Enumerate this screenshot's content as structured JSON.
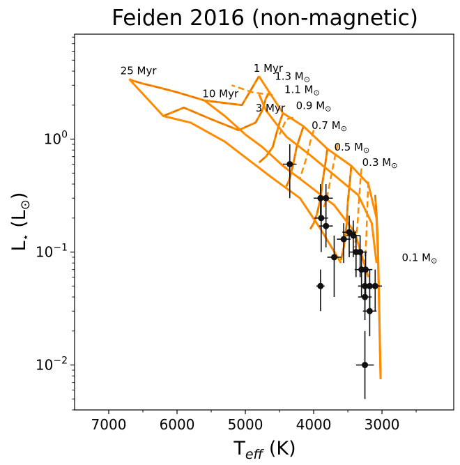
{
  "chart_data": {
    "type": "scatter",
    "title": "Feiden 2016 (non-magnetic)",
    "xlabel": {
      "main": "T",
      "sub": "eff",
      "unit": " (K)"
    },
    "ylabel": {
      "main": "L",
      "sub": "⋆",
      "unit_open": " (L",
      "unit_sub": "⊙",
      "unit_close": ")"
    },
    "x_axis": {
      "range": [
        1950,
        7500
      ],
      "inverted": true,
      "scale": "linear",
      "ticks": [
        7000,
        6000,
        5000,
        4000,
        3000
      ],
      "tick_labels": [
        "7000",
        "6000",
        "5000",
        "4000",
        "3000"
      ]
    },
    "y_axis": {
      "range": [
        0.004,
        8.5
      ],
      "scale": "log",
      "ticks": [
        0.01,
        0.1,
        1
      ],
      "tick_labels": [
        {
          "base": "10",
          "exp": "−2"
        },
        {
          "base": "10",
          "exp": "−1"
        },
        {
          "base": "10",
          "exp": "0"
        }
      ]
    },
    "colors": {
      "model": "#ff8c00",
      "data": "#111111",
      "axis": "#000000"
    },
    "mass_tracks": [
      {
        "mass": "1.3",
        "points": [
          [
            4800,
            3.6
          ],
          [
            4850,
            3.2
          ],
          [
            5050,
            2.0
          ],
          [
            5600,
            2.2
          ],
          [
            6000,
            2.6
          ],
          [
            6300,
            2.9
          ],
          [
            6500,
            3.1
          ],
          [
            6650,
            3.3
          ],
          [
            6700,
            3.4
          ]
        ]
      },
      {
        "mass": "1.1",
        "points": [
          [
            4650,
            2.6
          ],
          [
            4700,
            2.3
          ],
          [
            4750,
            1.8
          ],
          [
            4850,
            1.4
          ],
          [
            5100,
            1.2
          ],
          [
            5500,
            1.5
          ],
          [
            5900,
            1.9
          ],
          [
            6150,
            1.65
          ],
          [
            6200,
            1.6
          ]
        ]
      },
      {
        "mass": "0.9",
        "points": [
          [
            4450,
            1.7
          ],
          [
            4500,
            1.4
          ],
          [
            4550,
            1.1
          ],
          [
            4600,
            0.85
          ],
          [
            4700,
            0.7
          ],
          [
            4800,
            0.62
          ]
        ]
      },
      {
        "mass": "0.7",
        "points": [
          [
            4150,
            1.3
          ],
          [
            4200,
            1.05
          ],
          [
            4250,
            0.85
          ],
          [
            4300,
            0.6
          ],
          [
            4350,
            0.45
          ],
          [
            4400,
            0.38
          ]
        ]
      },
      {
        "mass": "0.5",
        "points": [
          [
            3800,
            0.82
          ],
          [
            3830,
            0.6
          ],
          [
            3870,
            0.42
          ],
          [
            3900,
            0.3
          ],
          [
            3950,
            0.22
          ],
          [
            4000,
            0.18
          ],
          [
            4050,
            0.16
          ]
        ]
      },
      {
        "mass": "0.3",
        "points": [
          [
            3450,
            0.58
          ],
          [
            3470,
            0.42
          ],
          [
            3500,
            0.28
          ],
          [
            3520,
            0.17
          ],
          [
            3560,
            0.11
          ],
          [
            3600,
            0.085
          ]
        ]
      },
      {
        "mass": "0.1",
        "points": [
          [
            3100,
            0.32
          ],
          [
            3080,
            0.22
          ],
          [
            3060,
            0.12
          ],
          [
            3050,
            0.06
          ],
          [
            3040,
            0.03
          ],
          [
            3030,
            0.015
          ],
          [
            3020,
            0.0075
          ]
        ]
      }
    ],
    "inner_tracks": [
      [
        [
          4600,
          2.45
        ],
        [
          4900,
          2.6
        ],
        [
          5200,
          3.0
        ]
      ],
      [
        [
          4300,
          1.55
        ],
        [
          4400,
          1.5
        ],
        [
          4500,
          1.1
        ]
      ],
      [
        [
          4000,
          1.2
        ],
        [
          4050,
          0.95
        ],
        [
          4100,
          0.7
        ],
        [
          4200,
          0.45
        ]
      ],
      [
        [
          3650,
          0.9
        ],
        [
          3700,
          0.65
        ],
        [
          3750,
          0.45
        ],
        [
          3800,
          0.32
        ],
        [
          3850,
          0.25
        ]
      ],
      [
        [
          3300,
          0.55
        ],
        [
          3320,
          0.4
        ],
        [
          3340,
          0.27
        ],
        [
          3360,
          0.17
        ],
        [
          3400,
          0.11
        ]
      ],
      [
        [
          3200,
          0.42
        ],
        [
          3210,
          0.3
        ],
        [
          3220,
          0.2
        ],
        [
          3230,
          0.13
        ],
        [
          3250,
          0.08
        ]
      ]
    ],
    "isochrones": [
      {
        "age": "1 Myr",
        "points": [
          [
            3020,
            0.0075
          ],
          [
            3060,
            0.1
          ],
          [
            3080,
            0.2
          ],
          [
            3200,
            0.4
          ],
          [
            3450,
            0.58
          ],
          [
            3800,
            0.82
          ],
          [
            4150,
            1.3
          ],
          [
            4450,
            1.7
          ],
          [
            4650,
            2.6
          ],
          [
            4800,
            3.6
          ]
        ]
      },
      {
        "age": "3 Myr",
        "points": [
          [
            3080,
            0.08
          ],
          [
            3150,
            0.18
          ],
          [
            3350,
            0.32
          ],
          [
            3700,
            0.48
          ],
          [
            4050,
            0.72
          ],
          [
            4400,
            1.05
          ],
          [
            4600,
            1.5
          ],
          [
            4700,
            1.8
          ],
          [
            4800,
            2.5
          ]
        ]
      },
      {
        "age": "10 Myr",
        "points": [
          [
            3200,
            0.06
          ],
          [
            3400,
            0.15
          ],
          [
            3700,
            0.26
          ],
          [
            4100,
            0.4
          ],
          [
            4450,
            0.58
          ],
          [
            4750,
            0.85
          ],
          [
            5000,
            1.1
          ],
          [
            5300,
            1.6
          ],
          [
            5600,
            2.2
          ]
        ]
      },
      {
        "age": "25 Myr",
        "points": [
          [
            3600,
            0.08
          ],
          [
            3900,
            0.16
          ],
          [
            4200,
            0.3
          ],
          [
            4600,
            0.45
          ],
          [
            4900,
            0.62
          ],
          [
            5300,
            0.95
          ],
          [
            5800,
            1.4
          ],
          [
            6200,
            1.6
          ],
          [
            6700,
            3.4
          ]
        ]
      }
    ],
    "annotations": [
      {
        "text": "1 Myr",
        "T": 4880,
        "L": 3.95
      },
      {
        "text": "3 Myr",
        "T": 4850,
        "L": 1.75
      },
      {
        "text": "10 Myr",
        "T": 5630,
        "L": 2.35
      },
      {
        "text": "25 Myr",
        "T": 6830,
        "L": 3.75
      }
    ],
    "mass_labels": [
      {
        "mass": "1.3",
        "T": 4570,
        "L": 3.35
      },
      {
        "mass": "1.1",
        "T": 4430,
        "L": 2.55
      },
      {
        "mass": "0.9",
        "T": 4260,
        "L": 1.85
      },
      {
        "mass": "0.7",
        "T": 4030,
        "L": 1.23
      },
      {
        "mass": "0.5",
        "T": 3700,
        "L": 0.79
      },
      {
        "mass": "0.3",
        "T": 3290,
        "L": 0.58
      },
      {
        "mass": "0.1",
        "T": 2710,
        "L": 0.083
      }
    ],
    "mass_unit": {
      "text": " M",
      "sub": "⊙"
    },
    "observations": [
      {
        "T": 4350,
        "L": 0.6,
        "xerr": 100,
        "yerr_lo": 0.3,
        "yerr_hi": 0.3
      },
      {
        "T": 3900,
        "L": 0.3,
        "xerr": 100,
        "yerr_lo": 0.1,
        "yerr_hi": 0.1
      },
      {
        "T": 3820,
        "L": 0.3,
        "xerr": 100,
        "yerr_lo": 0.1,
        "yerr_hi": 0.1
      },
      {
        "T": 3890,
        "L": 0.2,
        "xerr": 100,
        "yerr_lo": 0.1,
        "yerr_hi": 0.1
      },
      {
        "T": 3820,
        "L": 0.17,
        "xerr": 100,
        "yerr_lo": 0.06,
        "yerr_hi": 0.06
      },
      {
        "T": 3700,
        "L": 0.09,
        "xerr": 100,
        "yerr_lo": 0.05,
        "yerr_hi": 0.05
      },
      {
        "T": 3560,
        "L": 0.13,
        "xerr": 100,
        "yerr_lo": 0.05,
        "yerr_hi": 0.05
      },
      {
        "T": 3480,
        "L": 0.15,
        "xerr": 100,
        "yerr_lo": 0.06,
        "yerr_hi": 0.06
      },
      {
        "T": 3420,
        "L": 0.14,
        "xerr": 100,
        "yerr_lo": 0.05,
        "yerr_hi": 0.05
      },
      {
        "T": 3380,
        "L": 0.1,
        "xerr": 100,
        "yerr_lo": 0.04,
        "yerr_hi": 0.04
      },
      {
        "T": 3320,
        "L": 0.1,
        "xerr": 100,
        "yerr_lo": 0.04,
        "yerr_hi": 0.04
      },
      {
        "T": 3300,
        "L": 0.07,
        "xerr": 100,
        "yerr_lo": 0.03,
        "yerr_hi": 0.03
      },
      {
        "T": 3240,
        "L": 0.07,
        "xerr": 100,
        "yerr_lo": 0.03,
        "yerr_hi": 0.03
      },
      {
        "T": 3250,
        "L": 0.05,
        "xerr": 100,
        "yerr_lo": 0.02,
        "yerr_hi": 0.02
      },
      {
        "T": 3180,
        "L": 0.05,
        "xerr": 100,
        "yerr_lo": 0.02,
        "yerr_hi": 0.02
      },
      {
        "T": 3100,
        "L": 0.05,
        "xerr": 100,
        "yerr_lo": 0.02,
        "yerr_hi": 0.02
      },
      {
        "T": 3250,
        "L": 0.04,
        "xerr": 100,
        "yerr_lo": 0.015,
        "yerr_hi": 0.015
      },
      {
        "T": 3180,
        "L": 0.03,
        "xerr": 100,
        "yerr_lo": 0.012,
        "yerr_hi": 0.012
      },
      {
        "T": 3900,
        "L": 0.05,
        "xerr": 60,
        "yerr_lo": 0.02,
        "yerr_hi": 0.02
      },
      {
        "T": 3250,
        "L": 0.01,
        "xerr": 130,
        "yerr_lo": 0.005,
        "yerr_hi": 0.01
      }
    ]
  }
}
